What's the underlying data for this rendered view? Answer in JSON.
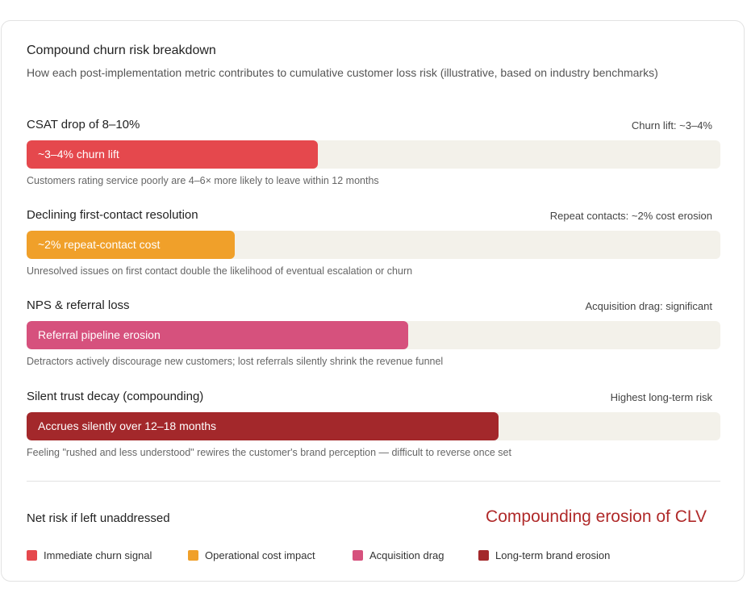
{
  "header": {
    "title": "Compound churn risk breakdown",
    "subtitle": "How each post-implementation metric contributes to cumulative customer loss risk (illustrative, based on industry benchmarks)"
  },
  "rows": [
    {
      "label": "CSAT drop of 8–10%",
      "right": "Churn lift: ~3–4%",
      "bar_text": "~3–4% churn lift",
      "note": "Customers rating service poorly are 4–6× more likely to leave within 12 months"
    },
    {
      "label": "Declining first-contact resolution",
      "right": "Repeat contacts: ~2% cost erosion",
      "bar_text": "~2% repeat-contact cost",
      "note": "Unresolved issues on first contact double the likelihood of eventual escalation or churn"
    },
    {
      "label": "NPS & referral loss",
      "right": "Acquisition drag: significant",
      "bar_text": "Referral pipeline erosion",
      "note": "Detractors actively discourage new customers; lost referrals silently shrink the revenue funnel"
    },
    {
      "label": "Silent trust decay (compounding)",
      "right": "Highest long-term risk",
      "bar_text": "Accrues silently over 12–18 months",
      "note": "Feeling \"rushed and less understood\" rewires the customer's brand perception — difficult to reverse once set"
    }
  ],
  "summary": {
    "label": "Net risk if left unaddressed",
    "value": "Compounding erosion of CLV"
  },
  "legend": [
    "Immediate churn signal",
    "Operational cost impact",
    "Acquisition drag",
    "Long-term brand erosion"
  ]
}
